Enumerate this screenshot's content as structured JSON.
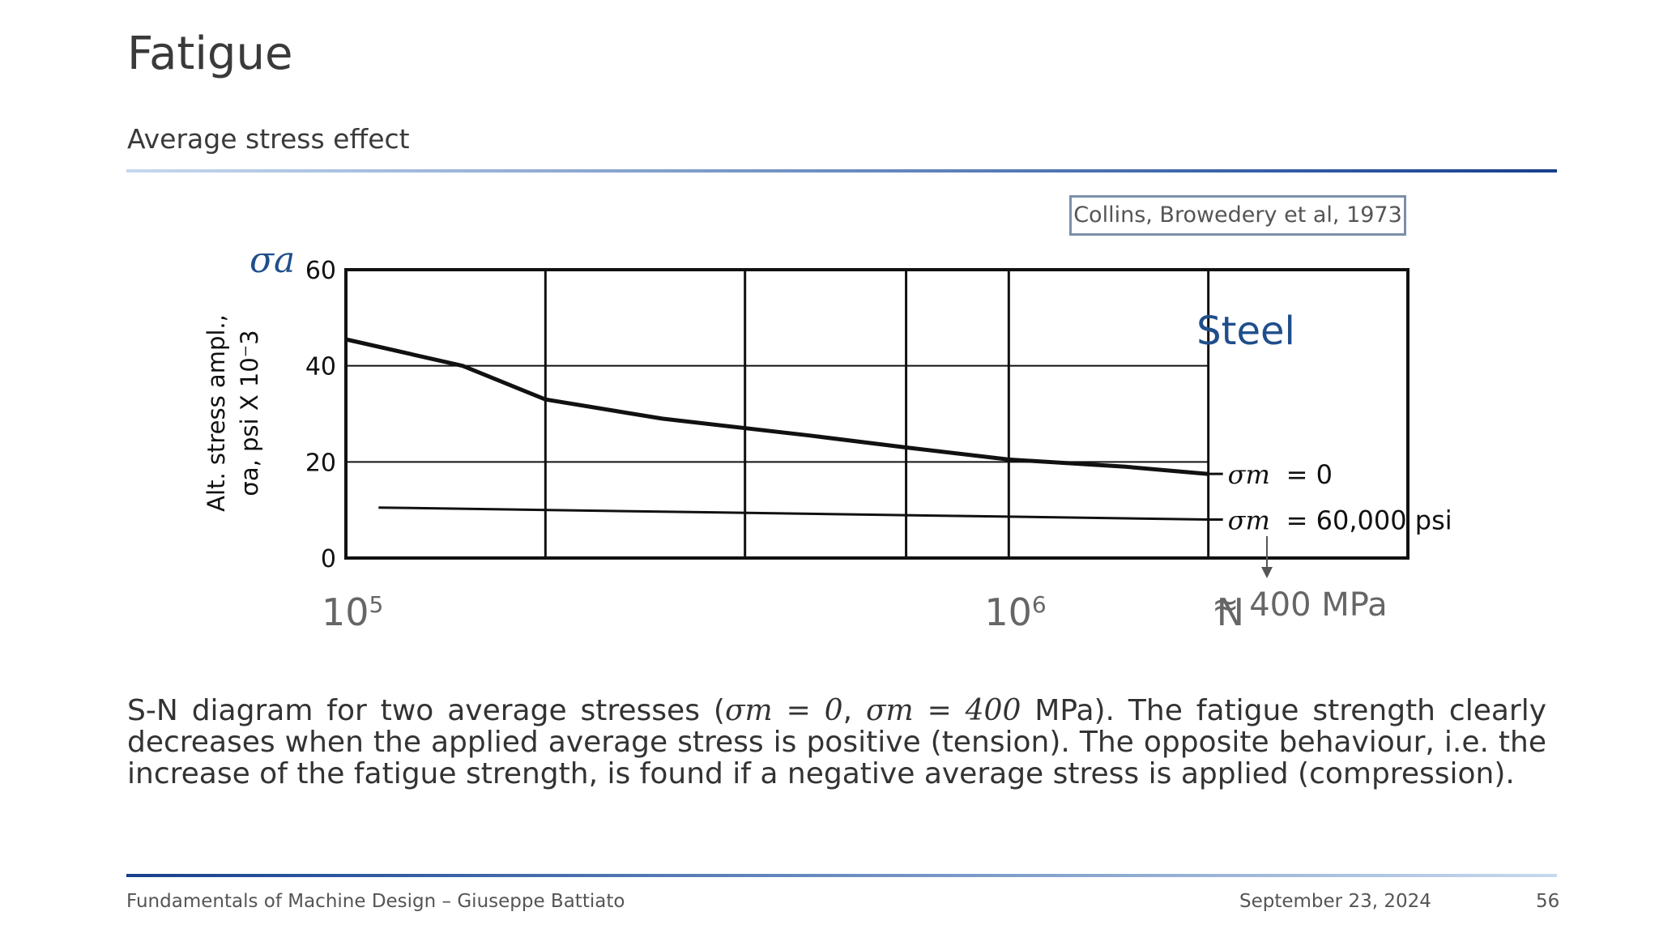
{
  "slide": {
    "title": "Fatigue",
    "subtitle": "Average stress effect",
    "citation": "Collins, Browedery et al, 1973"
  },
  "caption": {
    "prefix": "S-N diagram for two average stresses (",
    "sym1": "σm = 0",
    "sep": ", ",
    "sym2": "σm = 400",
    "suffix": " MPa). The fatigue strength clearly decreases when the applied average stress is positive (tension). The opposite behaviour, i.e. the increase of the fatigue strength, is found if a negative average stress is applied (compression)."
  },
  "footer": {
    "left": "Fundamentals of Machine Design – Giuseppe Battiato",
    "date": "September 23, 2024",
    "page": "56"
  },
  "chart_data": {
    "type": "line",
    "title": "",
    "xscale": "log",
    "xlim": [
      100000,
      4000000
    ],
    "ylim": [
      0,
      60
    ],
    "y_ticks": [
      0,
      20,
      40,
      60
    ],
    "x_tick_labels": [
      {
        "base": "10",
        "exp": "5",
        "value": 100000
      },
      {
        "base": "10",
        "exp": "6",
        "value": 1000000
      }
    ],
    "x_end_label": "N",
    "ylabel_line1": "Alt. stress ampl.,",
    "ylabel_line2": "σa, psi X 10⁻3",
    "y_symbol": "σa",
    "panel_label": "Steel",
    "grid": true,
    "series": [
      {
        "name": "σm = 0",
        "label_sym": "σm",
        "label_val": "= 0",
        "x": [
          100000,
          150000,
          200000,
          300000,
          500000,
          700000,
          1000000,
          1500000,
          2000000
        ],
        "y": [
          45.5,
          40,
          33,
          29,
          25.5,
          23,
          20.5,
          19,
          17.5
        ]
      },
      {
        "name": "σm = 60,000 psi",
        "label_sym": "σm",
        "label_val": "= 60,000 psi",
        "x": [
          112000,
          2000000
        ],
        "y": [
          10.5,
          8
        ]
      }
    ],
    "annotation": "≈ 400 MPa",
    "colors": {
      "ink": "#111111",
      "panel_label": "#1f4e8c",
      "symbol": "#1f4e8c",
      "tick_gray": "#666666"
    }
  }
}
